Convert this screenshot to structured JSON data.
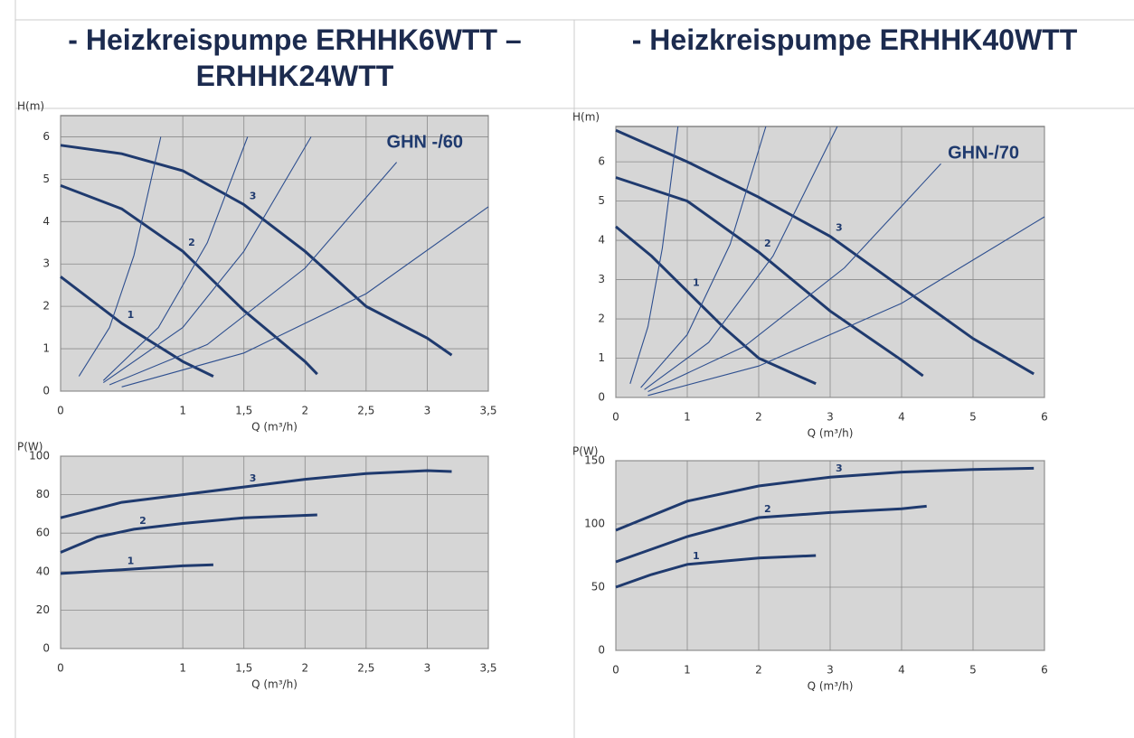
{
  "table": {
    "headers": [
      "- Heizkreispumpe ERHHK6WTT – ERHHK24WTT",
      "- Heizkreispumpe ERHHK40WTT"
    ]
  },
  "chart_data": [
    {
      "type": "line",
      "title": "GHN -/60",
      "xlabel": "Q (m³/h)",
      "ylabel": "H(m)",
      "grid": true,
      "xlim": [
        0,
        3.5
      ],
      "ylim": [
        0,
        6.5
      ],
      "xticks": [
        0,
        1,
        {
          "value": 1.5,
          "label": "1,5"
        },
        2,
        {
          "value": 2.5,
          "label": "2,5"
        },
        3,
        {
          "value": 3.5,
          "label": "3,5"
        }
      ],
      "yticks": [
        0,
        1,
        2,
        3,
        4,
        5,
        6
      ],
      "series": [
        {
          "name": "1",
          "color": "#1f3a6e",
          "x": [
            0,
            0.5,
            1,
            1.25
          ],
          "values": [
            2.7,
            1.6,
            0.7,
            0.35
          ]
        },
        {
          "name": "2",
          "color": "#1f3a6e",
          "x": [
            0,
            0.5,
            1,
            1.5,
            2,
            2.1
          ],
          "values": [
            4.85,
            4.3,
            3.3,
            1.9,
            0.7,
            0.4
          ]
        },
        {
          "name": "3",
          "color": "#1f3a6e",
          "x": [
            0,
            0.5,
            1,
            1.5,
            2,
            2.5,
            3,
            3.2
          ],
          "values": [
            5.8,
            5.6,
            5.2,
            4.4,
            3.3,
            2.0,
            1.25,
            0.85
          ]
        },
        {
          "color": "#2e4f8f",
          "x": [
            0.15,
            0.4,
            0.6,
            0.82
          ],
          "values": [
            0.35,
            1.5,
            3.2,
            6
          ]
        },
        {
          "color": "#2e4f8f",
          "x": [
            0.35,
            0.8,
            1.2,
            1.53
          ],
          "values": [
            0.25,
            1.5,
            3.5,
            6
          ]
        },
        {
          "color": "#2e4f8f",
          "x": [
            0.35,
            1,
            1.5,
            2.05
          ],
          "values": [
            0.2,
            1.5,
            3.3,
            6
          ]
        },
        {
          "color": "#2e4f8f",
          "x": [
            0.4,
            1.2,
            2,
            2.75
          ],
          "values": [
            0.15,
            1.1,
            2.9,
            5.4
          ]
        },
        {
          "color": "#2e4f8f",
          "x": [
            0.5,
            1.5,
            2.5,
            3.5
          ],
          "values": [
            0.1,
            0.9,
            2.3,
            4.35
          ]
        }
      ]
    },
    {
      "type": "line",
      "xlabel": "Q (m³/h)",
      "ylabel": "P(W)",
      "grid": true,
      "xlim": [
        0,
        3.5
      ],
      "ylim": [
        0,
        100
      ],
      "xticks": [
        0,
        1,
        {
          "value": 1.5,
          "label": "1,5"
        },
        2,
        {
          "value": 2.5,
          "label": "2,5"
        },
        3,
        {
          "value": 3.5,
          "label": "3,5"
        }
      ],
      "yticks": [
        0,
        20,
        40,
        60,
        80,
        100
      ],
      "series": [
        {
          "name": "1",
          "color": "#1f3a6e",
          "x": [
            0,
            0.5,
            1,
            1.25
          ],
          "values": [
            39,
            41,
            43,
            43.5
          ]
        },
        {
          "name": "2",
          "color": "#1f3a6e",
          "x": [
            0,
            0.3,
            0.6,
            1,
            1.5,
            2.1
          ],
          "values": [
            50,
            58,
            62,
            65,
            68,
            69.5
          ]
        },
        {
          "name": "3",
          "color": "#1f3a6e",
          "x": [
            0,
            0.5,
            1,
            1.5,
            2,
            2.5,
            3,
            3.2
          ],
          "values": [
            68,
            76,
            80,
            84,
            88,
            91,
            92.5,
            92
          ]
        }
      ]
    },
    {
      "type": "line",
      "title": "GHN-/70",
      "xlabel": "Q (m³/h)",
      "ylabel": "H(m)",
      "grid": true,
      "xlim": [
        0,
        6
      ],
      "ylim": [
        0,
        6.9
      ],
      "xticks": [
        0,
        1,
        2,
        3,
        4,
        5,
        6
      ],
      "yticks": [
        0,
        1,
        2,
        3,
        4,
        5,
        6
      ],
      "series": [
        {
          "name": "1",
          "color": "#1f3a6e",
          "x": [
            0,
            0.5,
            1,
            1.5,
            2,
            2.8
          ],
          "values": [
            4.35,
            3.6,
            2.7,
            1.8,
            1.0,
            0.35
          ]
        },
        {
          "name": "2",
          "color": "#1f3a6e",
          "x": [
            0,
            1,
            2,
            3,
            4,
            4.3
          ],
          "values": [
            5.6,
            5.0,
            3.7,
            2.2,
            0.95,
            0.55
          ]
        },
        {
          "name": "3",
          "color": "#1f3a6e",
          "x": [
            0,
            1,
            2,
            3,
            4,
            5,
            5.85
          ],
          "values": [
            6.8,
            6.0,
            5.1,
            4.1,
            2.8,
            1.5,
            0.6
          ]
        },
        {
          "color": "#2e4f8f",
          "x": [
            0.2,
            0.45,
            0.65,
            0.87
          ],
          "values": [
            0.35,
            1.8,
            3.8,
            6.9
          ]
        },
        {
          "color": "#2e4f8f",
          "x": [
            0.35,
            1,
            1.6,
            2.1
          ],
          "values": [
            0.25,
            1.6,
            3.9,
            6.9
          ]
        },
        {
          "color": "#2e4f8f",
          "x": [
            0.4,
            1.3,
            2.2,
            3.1
          ],
          "values": [
            0.2,
            1.4,
            3.6,
            6.9
          ]
        },
        {
          "color": "#2e4f8f",
          "x": [
            0.45,
            1.8,
            3.2,
            4.55
          ],
          "values": [
            0.15,
            1.3,
            3.3,
            5.95
          ]
        },
        {
          "color": "#2e4f8f",
          "x": [
            0.45,
            2,
            4,
            6
          ],
          "values": [
            0.05,
            0.8,
            2.4,
            4.6
          ]
        }
      ]
    },
    {
      "type": "line",
      "xlabel": "Q (m³/h)",
      "ylabel": "P(W)",
      "grid": true,
      "xlim": [
        0,
        6
      ],
      "ylim": [
        0,
        150
      ],
      "xticks": [
        0,
        1,
        2,
        3,
        4,
        5,
        6
      ],
      "yticks": [
        0,
        50,
        100,
        150
      ],
      "series": [
        {
          "name": "1",
          "color": "#1f3a6e",
          "x": [
            0,
            0.5,
            1,
            2,
            2.8
          ],
          "values": [
            50,
            60,
            68,
            73,
            75
          ]
        },
        {
          "name": "2",
          "color": "#1f3a6e",
          "x": [
            0,
            1,
            2,
            3,
            4,
            4.35
          ],
          "values": [
            70,
            90,
            105,
            109,
            112,
            114
          ]
        },
        {
          "name": "3",
          "color": "#1f3a6e",
          "x": [
            0,
            1,
            2,
            3,
            4,
            5,
            5.85
          ],
          "values": [
            95,
            118,
            130,
            137,
            141,
            143,
            144
          ]
        }
      ]
    }
  ]
}
